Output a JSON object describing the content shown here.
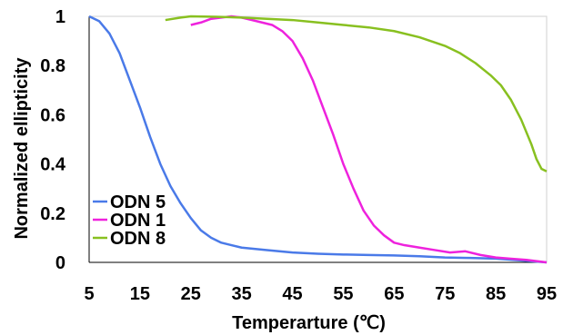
{
  "chart_data": {
    "type": "line",
    "title": "",
    "xlabel": "Temperarture (℃)",
    "ylabel": "Normalized ellipticity",
    "xlim": [
      5,
      95
    ],
    "ylim": [
      0,
      1
    ],
    "x_ticks": [
      "5",
      "15",
      "25",
      "35",
      "45",
      "55",
      "65",
      "75",
      "85",
      "95"
    ],
    "y_ticks": [
      "0",
      "0.2",
      "0.4",
      "0.6",
      "0.8",
      "1"
    ],
    "grid": false,
    "legend_position": "bottom-left",
    "series": [
      {
        "name": "ODN 5",
        "color": "#4a7ae8",
        "points": [
          [
            5,
            1.0
          ],
          [
            7,
            0.98
          ],
          [
            9,
            0.93
          ],
          [
            11,
            0.85
          ],
          [
            13,
            0.74
          ],
          [
            15,
            0.63
          ],
          [
            17,
            0.51
          ],
          [
            19,
            0.4
          ],
          [
            21,
            0.31
          ],
          [
            23,
            0.24
          ],
          [
            25,
            0.18
          ],
          [
            27,
            0.13
          ],
          [
            29,
            0.1
          ],
          [
            31,
            0.08
          ],
          [
            33,
            0.07
          ],
          [
            35,
            0.06
          ],
          [
            40,
            0.05
          ],
          [
            45,
            0.04
          ],
          [
            50,
            0.035
          ],
          [
            55,
            0.032
          ],
          [
            60,
            0.03
          ],
          [
            65,
            0.028
          ],
          [
            70,
            0.025
          ],
          [
            75,
            0.02
          ],
          [
            80,
            0.018
          ],
          [
            85,
            0.015
          ],
          [
            90,
            0.008
          ],
          [
            95,
            0.0
          ]
        ]
      },
      {
        "name": "ODN 1",
        "color": "#ee22dd",
        "points": [
          [
            25,
            0.965
          ],
          [
            27,
            0.975
          ],
          [
            29,
            0.99
          ],
          [
            31,
            0.995
          ],
          [
            33,
            1.0
          ],
          [
            35,
            0.995
          ],
          [
            37,
            0.985
          ],
          [
            39,
            0.975
          ],
          [
            41,
            0.965
          ],
          [
            43,
            0.94
          ],
          [
            45,
            0.9
          ],
          [
            47,
            0.83
          ],
          [
            49,
            0.74
          ],
          [
            51,
            0.63
          ],
          [
            53,
            0.52
          ],
          [
            55,
            0.4
          ],
          [
            57,
            0.3
          ],
          [
            59,
            0.21
          ],
          [
            61,
            0.15
          ],
          [
            63,
            0.11
          ],
          [
            65,
            0.08
          ],
          [
            67,
            0.07
          ],
          [
            70,
            0.06
          ],
          [
            73,
            0.05
          ],
          [
            76,
            0.04
          ],
          [
            79,
            0.045
          ],
          [
            82,
            0.03
          ],
          [
            85,
            0.02
          ],
          [
            88,
            0.015
          ],
          [
            91,
            0.01
          ],
          [
            95,
            0.0
          ]
        ]
      },
      {
        "name": "ODN 8",
        "color": "#88c020",
        "points": [
          [
            20,
            0.985
          ],
          [
            23,
            0.995
          ],
          [
            25,
            1.0
          ],
          [
            30,
            0.998
          ],
          [
            35,
            0.995
          ],
          [
            40,
            0.99
          ],
          [
            45,
            0.985
          ],
          [
            50,
            0.975
          ],
          [
            55,
            0.965
          ],
          [
            60,
            0.955
          ],
          [
            65,
            0.94
          ],
          [
            70,
            0.915
          ],
          [
            75,
            0.88
          ],
          [
            78,
            0.85
          ],
          [
            81,
            0.81
          ],
          [
            84,
            0.76
          ],
          [
            86,
            0.72
          ],
          [
            88,
            0.66
          ],
          [
            90,
            0.58
          ],
          [
            92,
            0.48
          ],
          [
            93,
            0.42
          ],
          [
            94,
            0.38
          ],
          [
            95,
            0.37
          ]
        ]
      }
    ]
  }
}
